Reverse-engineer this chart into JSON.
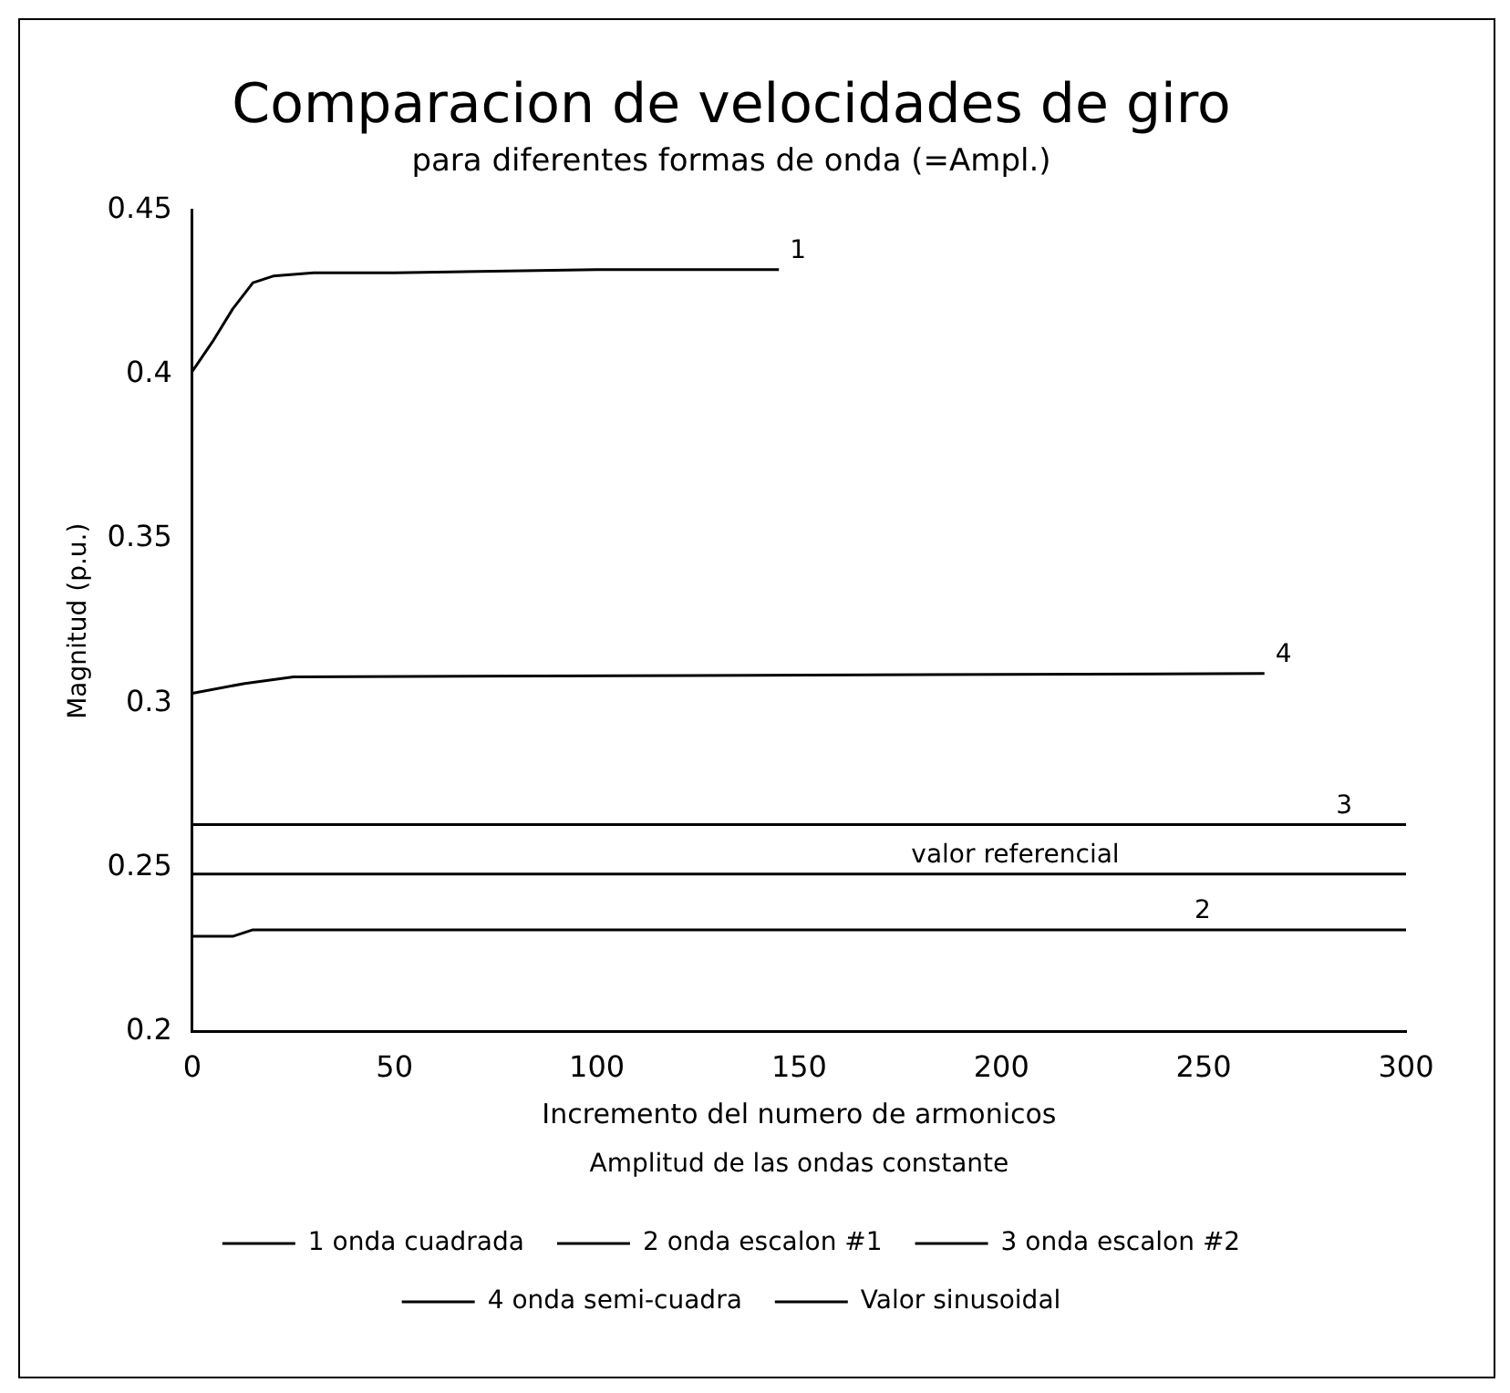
{
  "chart_data": {
    "type": "line",
    "title": "Comparacion de velocidades de giro",
    "subtitle": "para diferentes formas de onda (=Ampl.)",
    "xlabel": "Incremento del numero de armonicos",
    "ylabel": "Magnitud (p.u.)",
    "xlim": [
      0,
      300
    ],
    "xticks": [
      0,
      50,
      100,
      150,
      200,
      250,
      300
    ],
    "ylim": [
      0.2,
      0.45
    ],
    "yticks": [
      0.2,
      0.25,
      0.3,
      0.35,
      0.4,
      0.45
    ],
    "series": [
      {
        "name": "1 onda cuadrada",
        "color": "#000000",
        "x": [
          0,
          5,
          10,
          15,
          20,
          30,
          50,
          100,
          145
        ],
        "values": [
          0.401,
          0.41,
          0.42,
          0.428,
          0.43,
          0.431,
          0.431,
          0.432,
          0.432
        ]
      },
      {
        "name": "2 onda escalon #1",
        "color": "#000000",
        "x": [
          0,
          10,
          15,
          300
        ],
        "values": [
          0.229,
          0.229,
          0.231,
          0.231
        ]
      },
      {
        "name": "3 onda escalon #2",
        "color": "#000000",
        "x": [
          0,
          300
        ],
        "values": [
          0.263,
          0.263
        ]
      },
      {
        "name": "4 onda semi-cuadra",
        "color": "#000000",
        "x": [
          0,
          13,
          25,
          265
        ],
        "values": [
          0.303,
          0.306,
          0.308,
          0.309
        ]
      },
      {
        "name": "Valor sinusoidal",
        "color": "#000000",
        "x": [
          0,
          300
        ],
        "values": [
          0.248,
          0.248
        ]
      }
    ],
    "annotations": [
      {
        "text": "1",
        "x": 145,
        "y": 0.432
      },
      {
        "text": "4",
        "x": 265,
        "y": 0.309
      },
      {
        "text": "3",
        "x": 280,
        "y": 0.263
      },
      {
        "text": "2",
        "x": 245,
        "y": 0.231
      },
      {
        "text": "valor referencial",
        "x": 175,
        "y": 0.248
      },
      "Amplitud de las ondas constante"
    ],
    "legend": "bottom",
    "grid": false,
    "marker": "none",
    "line_style": "solid"
  }
}
